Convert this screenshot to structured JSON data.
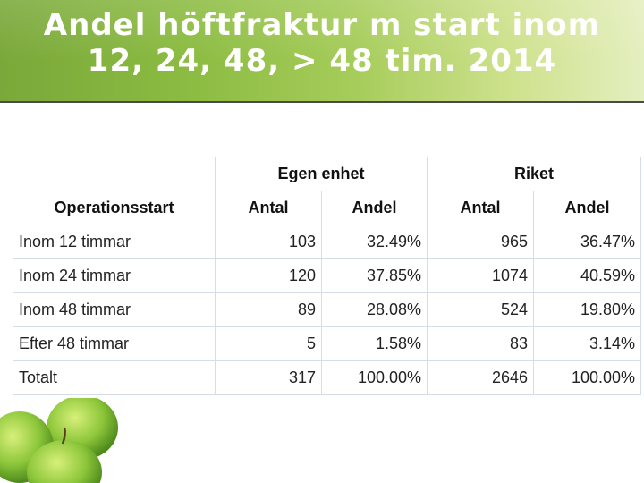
{
  "slide": {
    "title_line1": "Andel höftfraktur m start inom",
    "title_line2": "12, 24, 48, > 48 tim.  2014"
  },
  "table": {
    "groups": [
      "Egen enhet",
      "Riket"
    ],
    "columns": [
      "Operationsstart",
      "Antal",
      "Andel",
      "Antal",
      "Andel"
    ],
    "rows": [
      [
        "Inom 12 timmar",
        "103",
        "32.49%",
        "965",
        "36.47%"
      ],
      [
        "Inom 24 timmar",
        "120",
        "37.85%",
        "1074",
        "40.59%"
      ],
      [
        "Inom 48 timmar",
        "89",
        "28.08%",
        "524",
        "19.80%"
      ],
      [
        "Efter 48 timmar",
        "5",
        "1.58%",
        "83",
        "3.14%"
      ],
      [
        "Totalt",
        "317",
        "100.00%",
        "2646",
        "100.00%"
      ]
    ]
  },
  "colors": {
    "banner_dark": "#7aa83a",
    "banner_light": "#e4efbf",
    "table_border": "#d6dde8"
  },
  "icons": [
    "apple-icon"
  ]
}
